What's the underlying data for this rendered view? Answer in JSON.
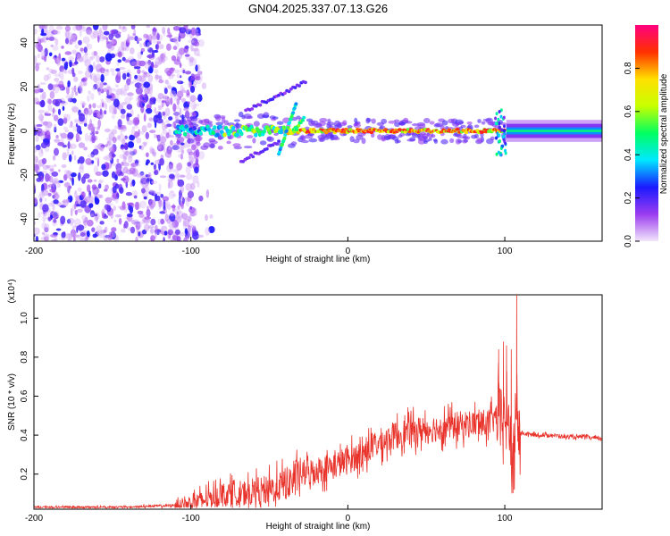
{
  "title": "GN04.2025.337.07.13.G26",
  "chart_data": [
    {
      "type": "heatmap",
      "name": "spectrogram",
      "xlabel": "Height of straight line (km)",
      "ylabel": "Frequency (Hz)",
      "xlim": [
        -200,
        162
      ],
      "ylim": [
        -50,
        48
      ],
      "xticks": [
        -200,
        -100,
        0,
        100
      ],
      "yticks": [
        -40,
        -20,
        0,
        20,
        40
      ],
      "colorbar": {
        "label": "Normalized spectral amplitude",
        "range": [
          0.0,
          1.0
        ],
        "ticks": [
          0.0,
          0.2,
          0.4,
          0.6,
          0.8
        ],
        "colors": [
          "#f2e6fb",
          "#9b3cf0",
          "#1a1aff",
          "#00e8ff",
          "#00ff60",
          "#c8ff00",
          "#ffe000",
          "#ff3000",
          "#ff0080"
        ]
      },
      "features": [
        {
          "name": "scattered noise",
          "x": [
            -200,
            -100
          ],
          "freq": [
            -50,
            48
          ],
          "amplitude": 0.15
        },
        {
          "name": "main band",
          "x": [
            -110,
            100
          ],
          "freq_center": 0,
          "amplitude_peak": 0.9
        },
        {
          "name": "rising streak",
          "x": [
            -65,
            -27
          ],
          "freq": [
            10,
            22
          ]
        },
        {
          "name": "falling streak",
          "x": [
            -68,
            -43
          ],
          "freq": [
            -14,
            -5
          ]
        },
        {
          "name": "flat band",
          "x": [
            101,
            162
          ],
          "freq": [
            -3,
            3
          ],
          "amplitude": 0.4
        }
      ]
    },
    {
      "type": "line",
      "name": "snr",
      "xlabel": "Height of straight line (km)",
      "ylabel": "SNR (10 * v/v)",
      "exponent_label": "(x10⁴)",
      "xlim": [
        -200,
        162
      ],
      "ylim": [
        0.02,
        1.12
      ],
      "xticks": [
        -200,
        -100,
        0,
        100
      ],
      "yticks": [
        0.2,
        0.4,
        0.6,
        0.8,
        1.0
      ],
      "color": "#e8322a",
      "series": [
        {
          "name": "SNR",
          "x": [
            -200,
            -170,
            -140,
            -110,
            -100,
            -90,
            -80,
            -70,
            -60,
            -50,
            -40,
            -30,
            -20,
            -10,
            0,
            10,
            20,
            30,
            40,
            50,
            60,
            70,
            80,
            90,
            95,
            100,
            103,
            106,
            107,
            108,
            110,
            120,
            130,
            140,
            150,
            162
          ],
          "y": [
            0.03,
            0.03,
            0.03,
            0.04,
            0.05,
            0.07,
            0.1,
            0.1,
            0.11,
            0.12,
            0.15,
            0.2,
            0.22,
            0.24,
            0.27,
            0.31,
            0.36,
            0.4,
            0.42,
            0.43,
            0.44,
            0.45,
            0.46,
            0.46,
            0.5,
            0.48,
            0.42,
            0.22,
            0.6,
            0.45,
            0.41,
            0.4,
            0.4,
            0.39,
            0.39,
            0.38
          ]
        }
      ],
      "spikes": [
        {
          "x": 96,
          "y": 0.84
        },
        {
          "x": 99,
          "y": 0.88
        },
        {
          "x": 101,
          "y": 0.86
        },
        {
          "x": 104,
          "y": 0.84
        },
        {
          "x": 106,
          "y": 0.12
        },
        {
          "x": 107.5,
          "y": 1.12
        },
        {
          "x": 109,
          "y": 0.3
        }
      ]
    }
  ]
}
